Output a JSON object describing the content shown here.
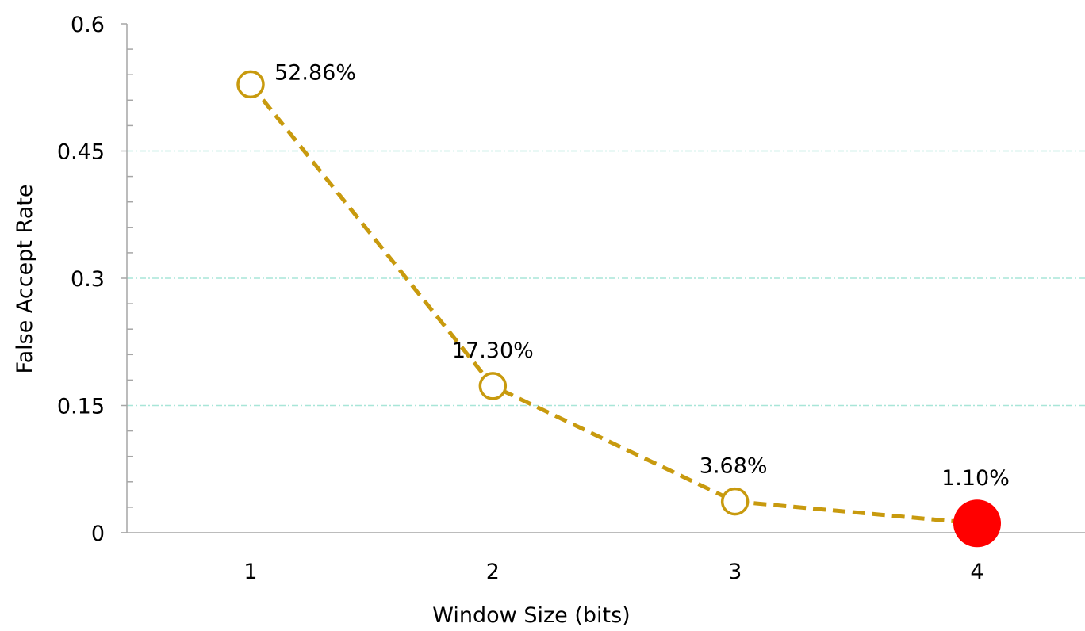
{
  "chart_data": {
    "type": "line",
    "title": "",
    "xlabel": "Window Size (bits)",
    "ylabel": "False Accept Rate",
    "categories": [
      "1",
      "2",
      "3",
      "4"
    ],
    "x": [
      1,
      2,
      3,
      4
    ],
    "series": [
      {
        "values": [
          0.5286,
          0.173,
          0.0368,
          0.011
        ],
        "data_labels": [
          "52.86%",
          "17.30%",
          "3.68%",
          "1.10%"
        ],
        "line_color": "#C89A0E",
        "line_style": "dashed",
        "marker": "open-circle",
        "highlight_index": 3,
        "highlight_color": "#FF0000"
      }
    ],
    "ylim": [
      0,
      0.6
    ],
    "y_ticks": [
      {
        "value": 0,
        "label": "0"
      },
      {
        "value": 0.15,
        "label": "0.15"
      },
      {
        "value": 0.3,
        "label": "0.3"
      },
      {
        "value": 0.45,
        "label": "0.45"
      },
      {
        "value": 0.6,
        "label": "0.6"
      }
    ],
    "y_minor_step": 0.03,
    "grid": true,
    "grid_color": "#A8E6D8",
    "axis_color": "#A6A6A6",
    "legend": "none"
  }
}
